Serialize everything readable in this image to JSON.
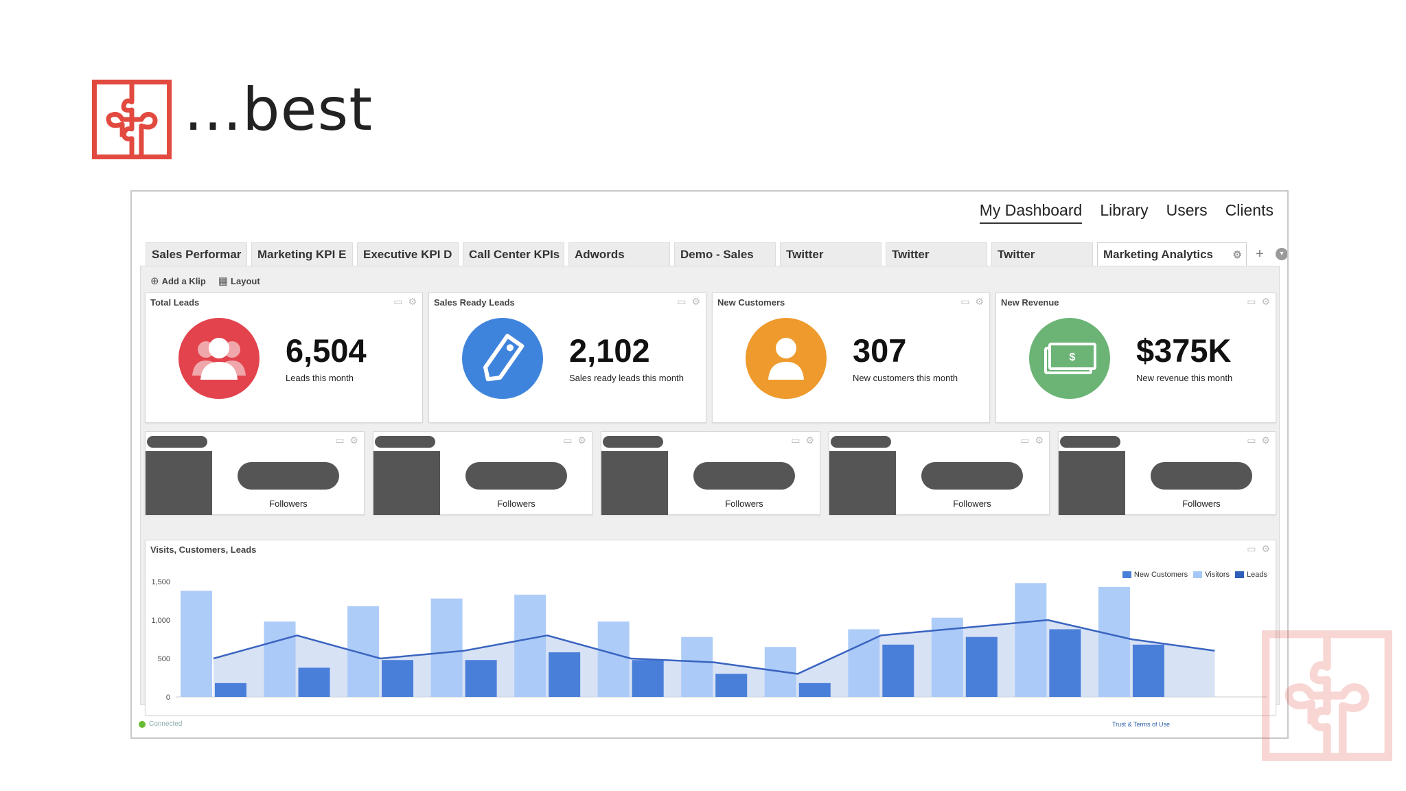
{
  "slide": {
    "title": "...best",
    "logo_icon": "puzzle-icon",
    "accent_color": "#e24a3f"
  },
  "nav": {
    "items": [
      {
        "label": "My Dashboard",
        "active": true
      },
      {
        "label": "Library"
      },
      {
        "label": "Users"
      },
      {
        "label": "Clients"
      }
    ]
  },
  "tabs": [
    {
      "label": "Sales Performar"
    },
    {
      "label": "Marketing KPI E"
    },
    {
      "label": "Executive KPI D"
    },
    {
      "label": "Call Center KPIs"
    },
    {
      "label": "Adwords"
    },
    {
      "label": "Demo - Sales"
    },
    {
      "label": "Twitter"
    },
    {
      "label": "Twitter"
    },
    {
      "label": "Twitter"
    },
    {
      "label": "Marketing Analytics",
      "active": true
    }
  ],
  "toolbar": {
    "add_klip": "Add a Klip",
    "layout": "Layout"
  },
  "kpis": [
    {
      "title": "Total Leads",
      "value": "6,504",
      "subtitle": "Leads this month",
      "color": "#e2434c",
      "icon": "users-icon"
    },
    {
      "title": "Sales Ready Leads",
      "value": "2,102",
      "subtitle": "Sales ready leads this month",
      "color": "#3f84dc",
      "icon": "tag-icon"
    },
    {
      "title": "New Customers",
      "value": "307",
      "subtitle": "New customers this month",
      "color": "#ee9a2c",
      "icon": "user-icon"
    },
    {
      "title": "New Revenue",
      "value": "$375K",
      "subtitle": "New revenue this month",
      "color": "#6bb475",
      "icon": "money-icon"
    }
  ],
  "twitter_klips": [
    {
      "label": "Followers"
    },
    {
      "label": "Followers"
    },
    {
      "label": "Followers"
    },
    {
      "label": "Followers"
    },
    {
      "label": "Followers"
    }
  ],
  "chart_data": {
    "type": "bar",
    "title": "Visits, Customers, Leads",
    "xlabel": "",
    "ylabel": "",
    "ylim": [
      0,
      1500
    ],
    "yticks": [
      0,
      500,
      1000,
      1500
    ],
    "ytick_labels": [
      "0",
      "500",
      "1,000",
      "1,500"
    ],
    "legend_position": "top-right",
    "grid": false,
    "group_count": 13,
    "series": [
      {
        "name": "New Customers",
        "kind": "area",
        "color": "#4a7fd9",
        "values": [
          500,
          800,
          500,
          600,
          800,
          500,
          450,
          300,
          800,
          900,
          1000,
          750,
          600
        ]
      },
      {
        "name": "Visitors",
        "kind": "bar",
        "color": "#a7c8f7",
        "values": [
          1380,
          980,
          1180,
          1280,
          1330,
          980,
          780,
          650,
          880,
          1030,
          1480,
          1430,
          null
        ]
      },
      {
        "name": "Leads",
        "kind": "bar",
        "color": "#4a7fd9",
        "values": [
          180,
          380,
          480,
          480,
          580,
          480,
          300,
          180,
          680,
          780,
          880,
          680,
          null
        ]
      }
    ]
  },
  "status": {
    "text": "Connected",
    "color": "#66bb33"
  },
  "footer": {
    "link": "Trust & Terms of Use"
  }
}
